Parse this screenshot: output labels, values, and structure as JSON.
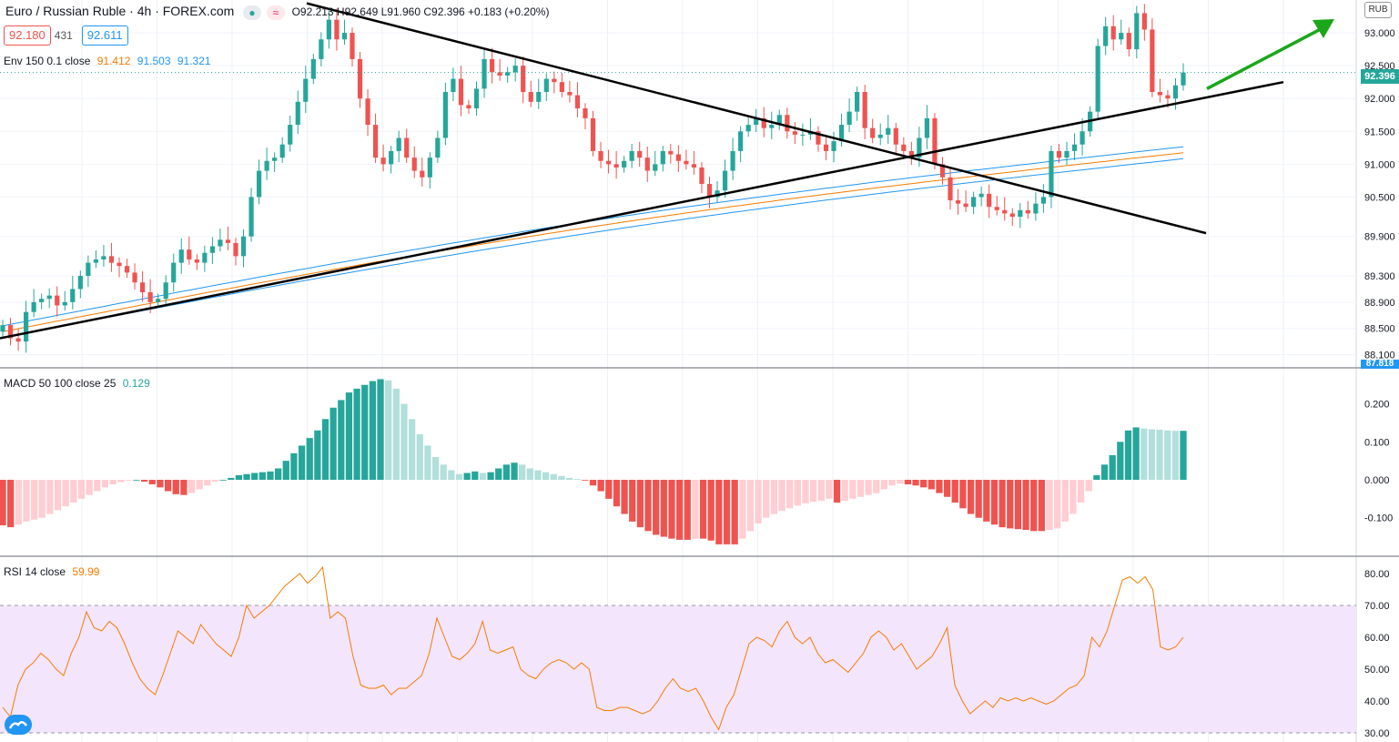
{
  "header": {
    "symbol": "Euro / Russian Ruble · 4h · FOREX.com",
    "ohlc": "O92.213 H92.649 L91.960 C92.396 +0.183 (+0.20%)",
    "bid": "92.180",
    "spread": "431",
    "ask": "92.611",
    "currency": "RUB",
    "env_label": "Env 150 0.1 close",
    "env_mid": "91.412",
    "env_upper": "91.503",
    "env_lower": "91.321",
    "current_price_tag": "92.396",
    "low_tag": "87.818",
    "macd_label": "MACD 50 100 close 25",
    "macd_value": "0.129",
    "rsi_label": "RSI 14 close",
    "rsi_value": "59.99"
  },
  "colors": {
    "up": "#26a69a",
    "down": "#ef5350",
    "env_mid": "#f57c00",
    "env_band": "#2196f3",
    "rsi_line": "#f57c00",
    "rsi_band": "#f3e5fc",
    "arrow": "#1aa71a"
  },
  "chart_data": [
    {
      "type": "candlestick",
      "title": "Euro / Russian Ruble · 4h · FOREX.com",
      "y_ticks": [
        "93.000",
        "92.500",
        "92.000",
        "91.500",
        "91.000",
        "90.500",
        "89.900",
        "89.300",
        "88.900",
        "88.500",
        "88.100"
      ],
      "ylim": [
        87.9,
        93.5
      ],
      "closes": [
        88.55,
        88.35,
        88.3,
        88.75,
        88.9,
        88.95,
        89.0,
        88.85,
        88.9,
        89.1,
        89.3,
        89.5,
        89.55,
        89.6,
        89.5,
        89.45,
        89.35,
        89.2,
        89.05,
        88.9,
        88.95,
        89.2,
        89.5,
        89.7,
        89.55,
        89.5,
        89.65,
        89.75,
        89.85,
        89.8,
        89.6,
        89.9,
        90.5,
        90.9,
        91.05,
        91.1,
        91.3,
        91.6,
        91.95,
        92.3,
        92.6,
        92.9,
        93.2,
        92.9,
        93.0,
        92.6,
        92.0,
        91.6,
        91.1,
        91.0,
        91.2,
        91.4,
        91.1,
        90.9,
        90.8,
        91.1,
        91.4,
        92.1,
        92.3,
        91.9,
        91.85,
        92.15,
        92.6,
        92.4,
        92.35,
        92.4,
        92.5,
        92.1,
        91.95,
        92.1,
        92.3,
        92.25,
        92.1,
        92.05,
        91.85,
        91.7,
        91.2,
        91.05,
        91.0,
        90.95,
        91.05,
        91.2,
        91.1,
        90.9,
        91.0,
        91.2,
        91.15,
        91.05,
        91.0,
        90.95,
        90.7,
        90.5,
        90.6,
        90.9,
        91.2,
        91.5,
        91.6,
        91.7,
        91.55,
        91.6,
        91.75,
        91.5,
        91.45,
        91.45,
        91.5,
        91.3,
        91.2,
        91.35,
        91.6,
        91.8,
        92.1,
        91.55,
        91.4,
        91.45,
        91.55,
        91.3,
        91.2,
        91.1,
        91.4,
        91.7,
        91.0,
        90.8,
        90.45,
        90.4,
        90.35,
        90.5,
        90.55,
        90.35,
        90.3,
        90.25,
        90.2,
        90.3,
        90.25,
        90.4,
        90.5,
        91.2,
        91.1,
        91.2,
        91.3,
        91.5,
        91.8,
        92.8,
        93.1,
        92.9,
        93.0,
        92.75,
        93.3,
        93.05,
        92.1,
        92.05,
        92.0,
        92.2,
        92.396
      ],
      "envelope_mid_start": 88.45,
      "envelope_mid_end": 91.412,
      "envelope_upper_end": 91.503,
      "envelope_lower_end": 91.321
    },
    {
      "type": "histogram",
      "title": "MACD 50 100 close 25",
      "y_ticks": [
        "0.200",
        "0.100",
        "0.000",
        "-0.100"
      ],
      "ylim": [
        -0.2,
        0.27
      ],
      "values": [
        -0.12,
        -0.125,
        -0.118,
        -0.11,
        -0.105,
        -0.1,
        -0.09,
        -0.08,
        -0.07,
        -0.06,
        -0.05,
        -0.04,
        -0.03,
        -0.02,
        -0.012,
        -0.006,
        -0.002,
        0.0,
        -0.005,
        -0.012,
        -0.02,
        -0.03,
        -0.038,
        -0.04,
        -0.035,
        -0.025,
        -0.015,
        -0.005,
        0.0,
        0.005,
        0.012,
        0.015,
        0.018,
        0.02,
        0.022,
        0.03,
        0.05,
        0.07,
        0.09,
        0.11,
        0.13,
        0.16,
        0.19,
        0.21,
        0.23,
        0.24,
        0.25,
        0.26,
        0.265,
        0.262,
        0.24,
        0.2,
        0.16,
        0.12,
        0.09,
        0.06,
        0.04,
        0.025,
        0.015,
        0.018,
        0.022,
        0.018,
        0.02,
        0.03,
        0.04,
        0.045,
        0.04,
        0.03,
        0.025,
        0.02,
        0.015,
        0.01,
        0.005,
        0.002,
        -0.002,
        -0.015,
        -0.03,
        -0.05,
        -0.07,
        -0.09,
        -0.11,
        -0.125,
        -0.135,
        -0.145,
        -0.15,
        -0.155,
        -0.158,
        -0.158,
        -0.155,
        -0.155,
        -0.16,
        -0.17,
        -0.17,
        -0.17,
        -0.155,
        -0.135,
        -0.115,
        -0.1,
        -0.09,
        -0.082,
        -0.075,
        -0.068,
        -0.062,
        -0.058,
        -0.055,
        -0.05,
        -0.06,
        -0.055,
        -0.05,
        -0.045,
        -0.04,
        -0.035,
        -0.025,
        -0.015,
        -0.01,
        -0.012,
        -0.015,
        -0.02,
        -0.025,
        -0.035,
        -0.045,
        -0.06,
        -0.075,
        -0.09,
        -0.1,
        -0.11,
        -0.118,
        -0.125,
        -0.128,
        -0.13,
        -0.132,
        -0.135,
        -0.135,
        -0.132,
        -0.128,
        -0.11,
        -0.09,
        -0.06,
        -0.03,
        0.012,
        0.04,
        0.065,
        0.1,
        0.13,
        0.138,
        0.135,
        0.133,
        0.132,
        0.13,
        0.129,
        0.129
      ],
      "zero": 0.0
    },
    {
      "type": "line",
      "title": "RSI 14 close",
      "y_ticks": [
        "80.00",
        "70.00",
        "60.00",
        "50.00",
        "40.00",
        "30.00"
      ],
      "ylim": [
        30,
        82
      ],
      "band": [
        30,
        70
      ],
      "values": [
        38,
        35,
        45,
        50,
        52,
        55,
        53,
        50,
        48,
        55,
        60,
        68,
        63,
        62,
        65,
        63,
        58,
        52,
        47,
        44,
        42,
        48,
        55,
        62,
        60,
        58,
        64,
        61,
        58,
        56,
        54,
        60,
        70,
        66,
        68,
        70,
        73,
        76,
        78,
        80,
        77,
        79,
        82,
        66,
        68,
        66,
        54,
        45,
        44,
        44,
        45,
        42,
        44,
        44,
        46,
        48,
        55,
        66,
        60,
        54,
        53,
        55,
        58,
        65,
        56,
        55,
        56,
        57,
        50,
        48,
        47,
        50,
        52,
        53,
        52,
        50,
        52,
        50,
        38,
        37,
        37,
        38,
        38,
        37,
        36,
        37,
        40,
        44,
        47,
        44,
        43,
        44,
        40,
        35,
        31,
        38,
        42,
        50,
        58,
        60,
        59,
        57,
        62,
        65,
        60,
        58,
        60,
        55,
        52,
        53,
        51,
        49,
        52,
        55,
        60,
        62,
        60,
        56,
        58,
        54,
        50,
        52,
        54,
        58,
        63,
        45,
        40,
        36,
        38,
        40,
        38,
        41,
        40,
        41,
        40,
        41,
        40,
        39,
        40,
        42,
        44,
        45,
        48,
        60,
        57,
        62,
        70,
        78,
        79,
        77,
        79,
        75,
        57,
        56,
        57,
        59.99
      ]
    }
  ]
}
